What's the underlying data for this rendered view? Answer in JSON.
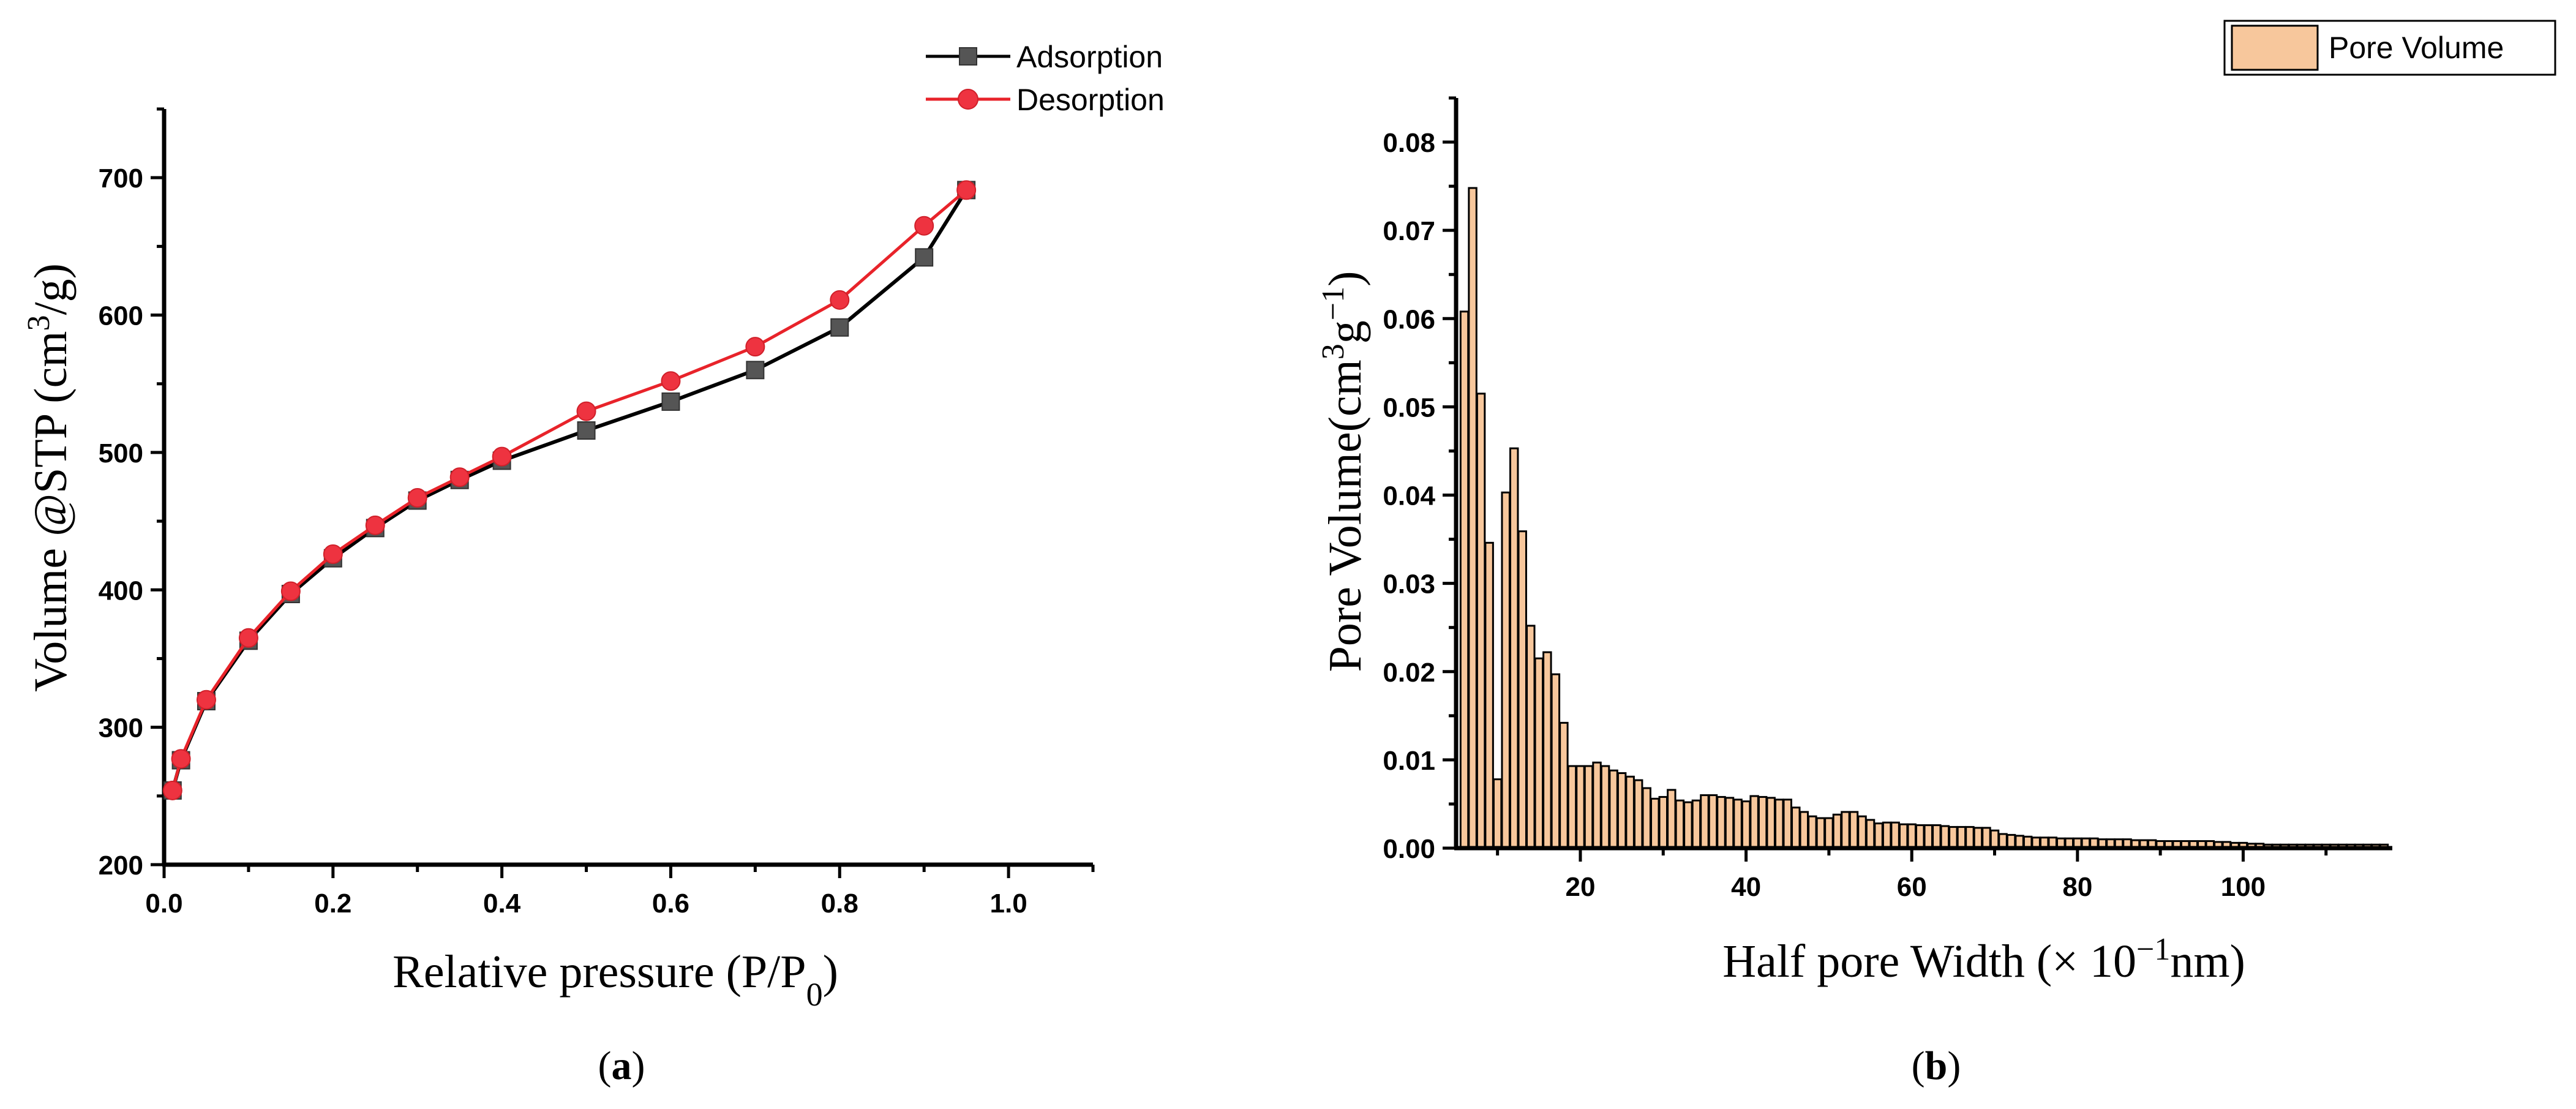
{
  "chart_data": [
    {
      "type": "line",
      "panel_label": "a",
      "xlabel": "Relative pressure (P/P0)",
      "ylabel": "Volume @STP (cm3/g)",
      "xlim": [
        0,
        1.1
      ],
      "ylim": [
        200,
        750
      ],
      "xticks": [
        "0.0",
        "0.2",
        "0.4",
        "0.6",
        "0.8",
        "1.0"
      ],
      "yticks": [
        "200",
        "300",
        "400",
        "500",
        "600",
        "700"
      ],
      "legend_position": "top-right",
      "series": [
        {
          "name": "Adsorption",
          "color": "#000000",
          "marker": "square",
          "marker_color": "#555555",
          "x": [
            0.01,
            0.02,
            0.05,
            0.1,
            0.15,
            0.2,
            0.25,
            0.3,
            0.35,
            0.4,
            0.5,
            0.6,
            0.7,
            0.8,
            0.9,
            0.95
          ],
          "y": [
            254,
            276,
            319,
            363,
            397,
            423,
            445,
            465,
            480,
            494,
            516,
            537,
            560,
            591,
            642,
            691
          ]
        },
        {
          "name": "Desorption",
          "color": "#e8232a",
          "marker": "circle",
          "marker_color": "#ee3340",
          "x": [
            0.01,
            0.02,
            0.05,
            0.1,
            0.15,
            0.2,
            0.25,
            0.3,
            0.35,
            0.4,
            0.5,
            0.6,
            0.7,
            0.8,
            0.9,
            0.95
          ],
          "y": [
            254,
            277,
            320,
            365,
            399,
            426,
            447,
            467,
            482,
            497,
            530,
            552,
            577,
            611,
            665,
            691
          ]
        }
      ]
    },
    {
      "type": "bar",
      "panel_label": "b",
      "xlabel": "Half pore Width (× 10−1nm)",
      "ylabel": "Pore Volume(cm3g−1)",
      "xlim": [
        5,
        118
      ],
      "ylim": [
        0,
        0.085
      ],
      "xticks": [
        "20",
        "40",
        "60",
        "80",
        "100"
      ],
      "yticks": [
        "0.00",
        "0.01",
        "0.02",
        "0.03",
        "0.04",
        "0.05",
        "0.06",
        "0.07",
        "0.08"
      ],
      "legend_position": "top-right",
      "series": [
        {
          "name": "Pore Volume",
          "color": "#f7c79c",
          "edge_color": "#000000",
          "x": [
            6,
            7,
            8,
            9,
            10,
            11,
            12,
            13,
            14,
            15,
            16,
            17,
            18,
            19,
            20,
            21,
            22,
            23,
            24,
            25,
            26,
            27,
            28,
            29,
            30,
            31,
            32,
            33,
            34,
            35,
            36,
            37,
            38,
            39,
            40,
            41,
            42,
            43,
            44,
            45,
            46,
            47,
            48,
            49,
            50,
            51,
            52,
            53,
            54,
            55,
            56,
            57,
            58,
            59,
            60,
            61,
            62,
            63,
            64,
            65,
            66,
            67,
            68,
            69,
            70,
            71,
            72,
            73,
            74,
            75,
            76,
            77,
            78,
            79,
            80,
            81,
            82,
            83,
            84,
            85,
            86,
            87,
            88,
            89,
            90,
            91,
            92,
            93,
            94,
            95,
            96,
            97,
            98,
            99,
            100,
            101,
            102,
            103,
            104,
            105,
            106,
            107,
            108,
            109,
            110,
            111,
            112,
            113,
            114,
            115,
            116,
            117
          ],
          "values": [
            0.0608,
            0.0748,
            0.0515,
            0.0346,
            0.0078,
            0.0403,
            0.0453,
            0.0359,
            0.0252,
            0.0215,
            0.0222,
            0.0197,
            0.0142,
            0.0093,
            0.0093,
            0.0093,
            0.0097,
            0.0093,
            0.0088,
            0.0085,
            0.0081,
            0.0077,
            0.0068,
            0.0056,
            0.0058,
            0.0066,
            0.0054,
            0.0052,
            0.0054,
            0.006,
            0.006,
            0.0058,
            0.0057,
            0.0055,
            0.0053,
            0.0059,
            0.0058,
            0.0057,
            0.0055,
            0.0055,
            0.0046,
            0.0041,
            0.0036,
            0.0034,
            0.0034,
            0.0038,
            0.0041,
            0.0041,
            0.0036,
            0.0032,
            0.0028,
            0.0029,
            0.0029,
            0.0027,
            0.0027,
            0.0026,
            0.0026,
            0.0026,
            0.0025,
            0.0024,
            0.0024,
            0.0024,
            0.0023,
            0.0023,
            0.002,
            0.0016,
            0.0015,
            0.0014,
            0.0013,
            0.0012,
            0.0012,
            0.0012,
            0.0011,
            0.0011,
            0.0011,
            0.0011,
            0.0011,
            0.001,
            0.001,
            0.001,
            0.001,
            0.0009,
            0.0009,
            0.0009,
            0.0008,
            0.0008,
            0.0008,
            0.0008,
            0.0008,
            0.0008,
            0.0008,
            0.0007,
            0.0007,
            0.0006,
            0.0006,
            0.0005,
            0.0005,
            0.0004,
            0.0004,
            0.0004,
            0.0004,
            0.0004,
            0.0004,
            0.0004,
            0.0004,
            0.0004,
            0.0004,
            0.0004,
            0.0004,
            0.0004,
            0.0004,
            0.0004
          ]
        }
      ]
    }
  ]
}
